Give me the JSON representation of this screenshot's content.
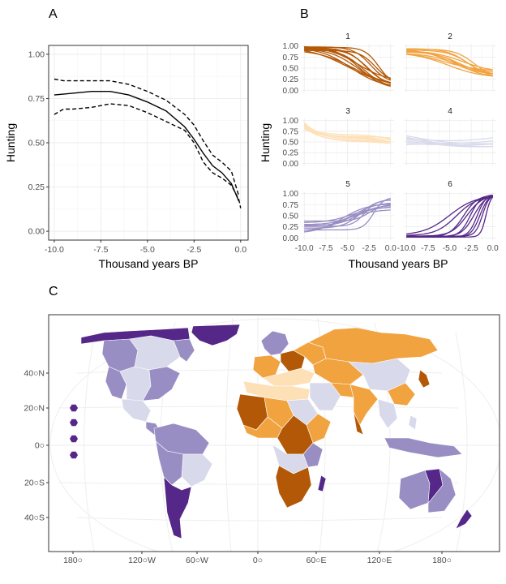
{
  "panels": {
    "a": {
      "label": "A"
    },
    "b": {
      "label": "B"
    },
    "c": {
      "label": "C"
    }
  },
  "colors": {
    "c1": "#b35806",
    "c2": "#f1a340",
    "c3": "#fee0b6",
    "c4": "#d8daeb",
    "c5": "#998ec3",
    "c6": "#542788",
    "grid": "#ebebeb",
    "text": "#4d4d4d"
  },
  "chart_data": [
    {
      "id": "A",
      "type": "line",
      "xlabel": "Thousand years BP",
      "ylabel": "Hunting",
      "xlim": [
        -10.3,
        0.4
      ],
      "ylim": [
        -0.05,
        1.05
      ],
      "xticks": [
        -10.0,
        -7.5,
        -5.0,
        -2.5,
        0.0
      ],
      "xtick_labels": [
        "-10.0",
        "-7.5",
        "-5.0",
        "-2.5",
        "0.0"
      ],
      "yticks": [
        0,
        0.25,
        0.5,
        0.75,
        1
      ],
      "ytick_labels": [
        "0.00",
        "0.25",
        "0.50",
        "0.75",
        "1.00"
      ],
      "grid": true,
      "series": [
        {
          "style": "solid",
          "x": [
            -10,
            -9,
            -8,
            -7,
            -6,
            -5,
            -4,
            -3,
            -2.5,
            -2,
            -1.5,
            -1,
            -0.5,
            -0.1
          ],
          "y": [
            0.77,
            0.78,
            0.79,
            0.79,
            0.77,
            0.73,
            0.68,
            0.59,
            0.52,
            0.44,
            0.37,
            0.33,
            0.27,
            0.17
          ]
        },
        {
          "style": "dashed",
          "x": [
            -10,
            -9.5,
            -9,
            -8,
            -7,
            -6,
            -5,
            -4,
            -3,
            -2.5,
            -2,
            -1.5,
            -1,
            -0.5,
            -0.1
          ],
          "y": [
            0.86,
            0.85,
            0.85,
            0.85,
            0.85,
            0.83,
            0.79,
            0.74,
            0.66,
            0.6,
            0.51,
            0.43,
            0.39,
            0.34,
            0.2
          ]
        },
        {
          "style": "dashed",
          "x": [
            -10,
            -9.5,
            -9,
            -8,
            -7,
            -6,
            -5,
            -4,
            -3,
            -2.5,
            -2,
            -1.5,
            -1,
            -0.5,
            -0.1,
            0
          ],
          "y": [
            0.66,
            0.69,
            0.69,
            0.7,
            0.72,
            0.71,
            0.67,
            0.62,
            0.57,
            0.5,
            0.39,
            0.33,
            0.3,
            0.26,
            0.18,
            0.13
          ]
        }
      ]
    },
    {
      "id": "B",
      "type": "line",
      "xlabel": "Thousand years BP",
      "ylabel": "Hunting",
      "xlim": [
        -10.3,
        0.4
      ],
      "ylim": [
        -0.05,
        1.05
      ],
      "xticks": [
        -10.0,
        -7.5,
        -5.0,
        -2.5,
        0.0
      ],
      "xtick_labels": [
        "-10.0",
        "-7.5",
        "-5.0",
        "-2.5",
        "0.0"
      ],
      "yticks": [
        0,
        0.25,
        0.5,
        0.75,
        1
      ],
      "ytick_labels": [
        "0.00",
        "0.25",
        "0.50",
        "0.75",
        "1.00"
      ],
      "facets": [
        {
          "title": "1",
          "color_key": "c1",
          "shape": "logistic",
          "curves": [
            [
              0.97,
              0.05,
              -4.6,
              1.8
            ],
            [
              0.95,
              0.1,
              -4.0,
              1.6
            ],
            [
              0.99,
              0.02,
              -3.6,
              1.4
            ],
            [
              0.96,
              0.12,
              -2.9,
              1.1
            ],
            [
              0.92,
              0.08,
              -4.3,
              2.1
            ],
            [
              0.98,
              0.15,
              -2.3,
              1.0
            ],
            [
              0.93,
              0.04,
              -3.2,
              1.3
            ],
            [
              0.99,
              0.08,
              -5.0,
              2.3
            ],
            [
              0.9,
              0.18,
              -1.8,
              0.9
            ],
            [
              0.97,
              0.12,
              -1.4,
              0.8
            ],
            [
              0.94,
              0.06,
              -2.6,
              1.2
            ],
            [
              0.98,
              0.2,
              -3.8,
              1.7
            ]
          ]
        },
        {
          "title": "2",
          "color_key": "c2",
          "shape": "logistic",
          "curves": [
            [
              0.92,
              0.35,
              -4.8,
              1.6
            ],
            [
              0.88,
              0.3,
              -4.0,
              1.4
            ],
            [
              0.9,
              0.4,
              -3.5,
              1.8
            ],
            [
              0.86,
              0.28,
              -5.2,
              2.0
            ],
            [
              0.94,
              0.32,
              -3.0,
              1.2
            ],
            [
              0.84,
              0.38,
              -4.4,
              1.7
            ],
            [
              0.91,
              0.25,
              -2.6,
              1.3
            ],
            [
              0.89,
              0.42,
              -5.8,
              2.2
            ],
            [
              0.87,
              0.33,
              -3.8,
              1.5
            ],
            [
              0.93,
              0.29,
              -2.2,
              1.1
            ]
          ]
        },
        {
          "title": "3",
          "color_key": "c3",
          "shape": "ushape",
          "curves": [
            [
              0.92,
              0.28,
              0.55,
              -3.6
            ],
            [
              0.88,
              0.32,
              0.6,
              -3.9
            ],
            [
              0.85,
              0.36,
              0.52,
              -3.2
            ],
            [
              0.95,
              0.24,
              0.58,
              -4.2
            ],
            [
              0.8,
              0.4,
              0.62,
              -3.0
            ],
            [
              0.9,
              0.3,
              0.5,
              -3.7
            ],
            [
              0.83,
              0.34,
              0.66,
              -4.4
            ]
          ]
        },
        {
          "title": "4",
          "color_key": "c4",
          "shape": "mixed",
          "curves": [
            [
              0.52,
              0.48
            ],
            [
              0.6,
              0.4
            ],
            [
              0.42,
              0.58
            ],
            [
              0.65,
              0.45
            ],
            [
              0.38,
              0.52
            ],
            [
              0.55,
              0.62
            ],
            [
              0.47,
              0.44
            ]
          ]
        },
        {
          "title": "5",
          "color_key": "c5",
          "shape": "logistic",
          "curves": [
            [
              0.22,
              0.88,
              -3.5,
              1.0
            ],
            [
              0.3,
              0.8,
              -4.0,
              1.2
            ],
            [
              0.15,
              0.72,
              -5.0,
              1.6
            ],
            [
              0.38,
              0.76,
              -2.5,
              0.8
            ],
            [
              0.08,
              0.65,
              -6.0,
              1.8
            ],
            [
              0.26,
              0.86,
              -3.0,
              0.7
            ],
            [
              0.34,
              0.7,
              -4.6,
              1.4
            ],
            [
              0.18,
              0.92,
              -2.0,
              0.6
            ],
            [
              0.1,
              0.78,
              -5.6,
              1.5
            ],
            [
              0.28,
              0.74,
              -3.8,
              1.1
            ]
          ]
        },
        {
          "title": "6",
          "color_key": "c6",
          "shape": "logistic",
          "curves": [
            [
              0.02,
              0.99,
              -1.8,
              0.5
            ],
            [
              0.03,
              0.98,
              -2.6,
              0.6
            ],
            [
              0.02,
              0.97,
              -3.4,
              0.8
            ],
            [
              0.04,
              0.99,
              -1.2,
              0.4
            ],
            [
              0.05,
              0.95,
              -4.2,
              1.2
            ],
            [
              0.02,
              0.99,
              -0.8,
              0.3
            ],
            [
              0.06,
              0.96,
              -5.0,
              1.5
            ],
            [
              0.03,
              0.98,
              -2.2,
              0.7
            ],
            [
              0.04,
              0.97,
              -3.0,
              0.9
            ],
            [
              0.02,
              0.99,
              -1.5,
              0.5
            ]
          ]
        }
      ]
    },
    {
      "id": "C",
      "type": "map",
      "xtick_labels": [
        "180○",
        "120○W",
        "60○W",
        "0○",
        "60○E",
        "120○E",
        "180○"
      ],
      "ytick_labels": [
        "40○N",
        "20○N",
        "0○",
        "20○S",
        "40○S"
      ],
      "legend": {
        "placement": "left",
        "color_keys": [
          "c3",
          "c4",
          "c5",
          "c6"
        ]
      }
    }
  ]
}
